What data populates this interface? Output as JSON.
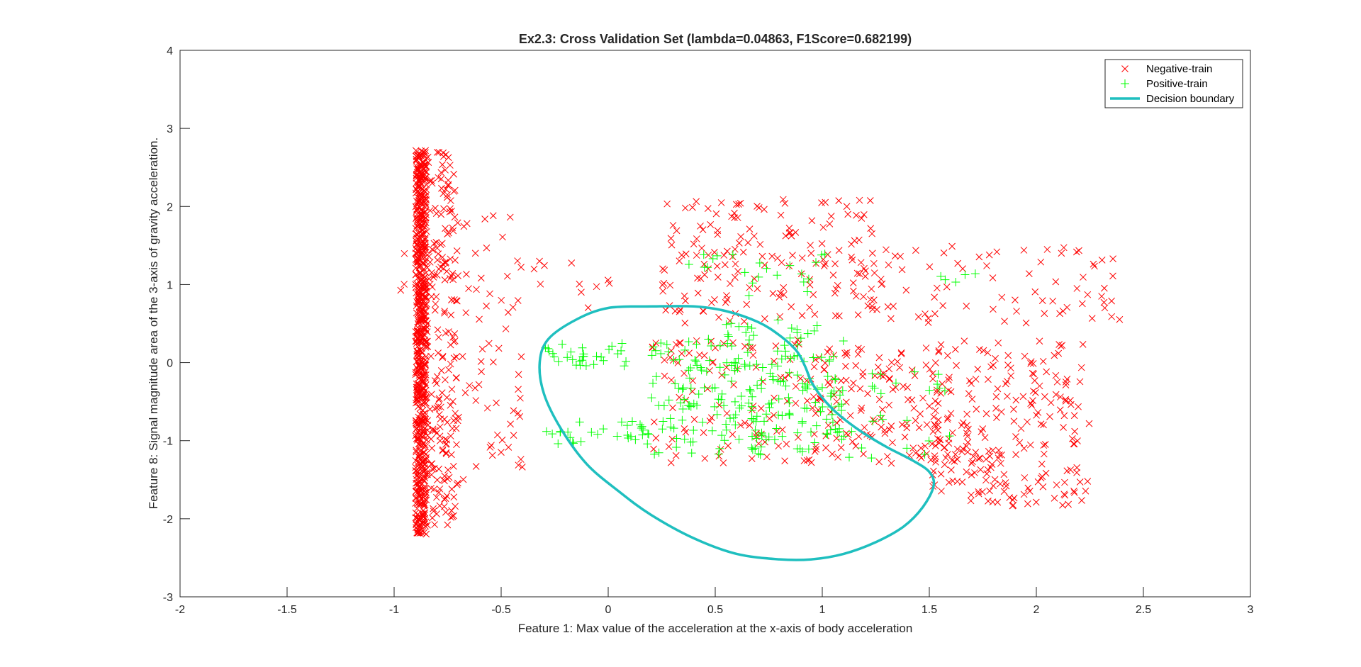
{
  "chart_data": {
    "type": "scatter",
    "title": "Ex2.3: Cross Validation Set (lambda=0.04863, F1Score=0.682199)",
    "xlabel": "Feature 1: Max value of the acceleration at the x-axis of body acceleration",
    "ylabel": "Feature 8: Signal magnitude area of the 3-axis of gravity acceleration.",
    "xlim": [
      -2,
      3
    ],
    "ylim": [
      -3,
      4
    ],
    "xticks": [
      -2,
      -1.5,
      -1,
      -0.5,
      0,
      0.5,
      1,
      1.5,
      2,
      2.5,
      3
    ],
    "xtick_labels": [
      "-2",
      "-1.5",
      "-1",
      "-0.5",
      "0",
      "0.5",
      "1",
      "1.5",
      "2",
      "2.5",
      "3"
    ],
    "yticks": [
      -3,
      -2,
      -1,
      0,
      1,
      2,
      3,
      4
    ],
    "ytick_labels": [
      "-3",
      "-2",
      "-1",
      "0",
      "1",
      "2",
      "3",
      "4"
    ],
    "grid": false,
    "legend_position": "top-right",
    "colors": {
      "negative": "#ff0000",
      "positive": "#00ff00",
      "boundary": "#1fbfbf",
      "axis": "#262626"
    },
    "series": [
      {
        "name": "Negative-train",
        "marker": "x",
        "clusters": [
          {
            "x": [
              -0.9,
              -0.85
            ],
            "y": [
              -2.2,
              2.72
            ],
            "count": 700
          },
          {
            "x": [
              -0.85,
              -0.7
            ],
            "y": [
              -2.1,
              2.7
            ],
            "count": 220
          },
          {
            "x": [
              -0.7,
              -0.4
            ],
            "y": [
              -1.5,
              1.95
            ],
            "count": 60
          },
          {
            "x": [
              -0.35,
              0.3
            ],
            "y": [
              0.7,
              1.3
            ],
            "count": 12
          },
          {
            "x": [
              0.25,
              1.25
            ],
            "y": [
              0.5,
              2.1
            ],
            "count": 170
          },
          {
            "x": [
              1.2,
              2.4
            ],
            "y": [
              0.5,
              1.5
            ],
            "count": 80
          },
          {
            "x": [
              0.2,
              1.0
            ],
            "y": [
              -1.3,
              0.3
            ],
            "count": 110
          },
          {
            "x": [
              0.95,
              1.6
            ],
            "y": [
              -1.3,
              0.2
            ],
            "count": 140
          },
          {
            "x": [
              1.5,
              2.25
            ],
            "y": [
              -1.85,
              0.3
            ],
            "count": 230
          },
          {
            "x": [
              -1.0,
              -0.95
            ],
            "y": [
              0.9,
              1.7
            ],
            "count": 3
          }
        ]
      },
      {
        "name": "Positive-train",
        "marker": "+",
        "clusters": [
          {
            "x": [
              -0.3,
              0.1
            ],
            "y": [
              -0.05,
              0.25
            ],
            "count": 30
          },
          {
            "x": [
              -0.3,
              0.2
            ],
            "y": [
              -1.05,
              -0.75
            ],
            "count": 30
          },
          {
            "x": [
              0.2,
              1.1
            ],
            "y": [
              -1.2,
              0.3
            ],
            "count": 220
          },
          {
            "x": [
              0.55,
              1.0
            ],
            "y": [
              0.2,
              0.55
            ],
            "count": 20
          },
          {
            "x": [
              0.3,
              1.15
            ],
            "y": [
              0.85,
              1.4
            ],
            "count": 22
          },
          {
            "x": [
              1.1,
              1.6
            ],
            "y": [
              -1.3,
              -0.1
            ],
            "count": 25
          },
          {
            "x": [
              1.5,
              1.75
            ],
            "y": [
              1.0,
              1.15
            ],
            "count": 5
          }
        ]
      },
      {
        "name": "Decision boundary",
        "type": "line",
        "x": [
          0.2,
          0.0,
          -0.15,
          -0.28,
          -0.32,
          -0.3,
          -0.22,
          -0.1,
          0.05,
          0.2,
          0.4,
          0.6,
          0.8,
          0.95,
          1.1,
          1.25,
          1.38,
          1.47,
          1.52,
          1.5,
          1.42,
          1.3,
          1.18,
          1.07,
          1.0,
          0.95,
          0.92,
          0.88,
          0.8,
          0.7,
          0.55,
          0.4,
          0.2
        ],
        "y": [
          0.72,
          0.7,
          0.55,
          0.3,
          0.0,
          -0.4,
          -0.85,
          -1.3,
          -1.65,
          -1.95,
          -2.25,
          -2.45,
          -2.52,
          -2.52,
          -2.45,
          -2.3,
          -2.1,
          -1.85,
          -1.58,
          -1.4,
          -1.25,
          -1.08,
          -0.88,
          -0.65,
          -0.45,
          -0.25,
          -0.05,
          0.15,
          0.35,
          0.52,
          0.66,
          0.72,
          0.72
        ]
      }
    ]
  }
}
